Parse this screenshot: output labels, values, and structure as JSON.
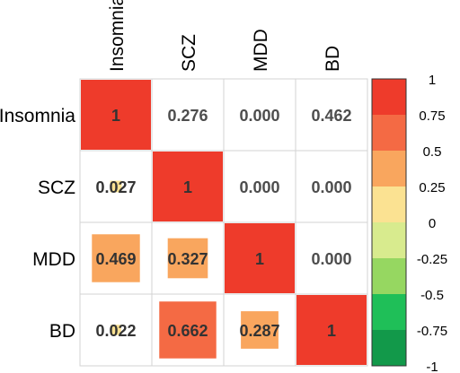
{
  "chart_data": {
    "type": "heatmap",
    "title": "",
    "variables": [
      "Insomnia",
      "SCZ",
      "MDD",
      "BD"
    ],
    "upper_values": [
      [
        "",
        "0.276",
        "0.000",
        "0.462"
      ],
      [
        "",
        "",
        "0.000",
        "0.000"
      ],
      [
        "",
        "",
        "",
        "0.000"
      ]
    ],
    "diagonal_label": "1",
    "lower_values": [
      {
        "row": 1,
        "col": 0,
        "value": 0.027,
        "label": "0.027"
      },
      {
        "row": 2,
        "col": 0,
        "value": 0.469,
        "label": "0.469"
      },
      {
        "row": 2,
        "col": 1,
        "value": 0.327,
        "label": "0.327"
      },
      {
        "row": 3,
        "col": 0,
        "value": 0.022,
        "label": "0.022"
      },
      {
        "row": 3,
        "col": 1,
        "value": 0.662,
        "label": "0.662"
      },
      {
        "row": 3,
        "col": 2,
        "value": 0.287,
        "label": "0.287"
      }
    ],
    "color_scale": {
      "range": [
        -1,
        1
      ],
      "ticks": [
        "1",
        "0.75",
        "0.5",
        "0.25",
        "0",
        "-0.25",
        "-0.5",
        "-0.75",
        "-1"
      ],
      "bins_top_to_bottom": [
        "#ee3b2b",
        "#f46a44",
        "#f9a65e",
        "#fbe292",
        "#d8eb8e",
        "#96d761",
        "#1fbf58",
        "#12994a"
      ]
    }
  }
}
